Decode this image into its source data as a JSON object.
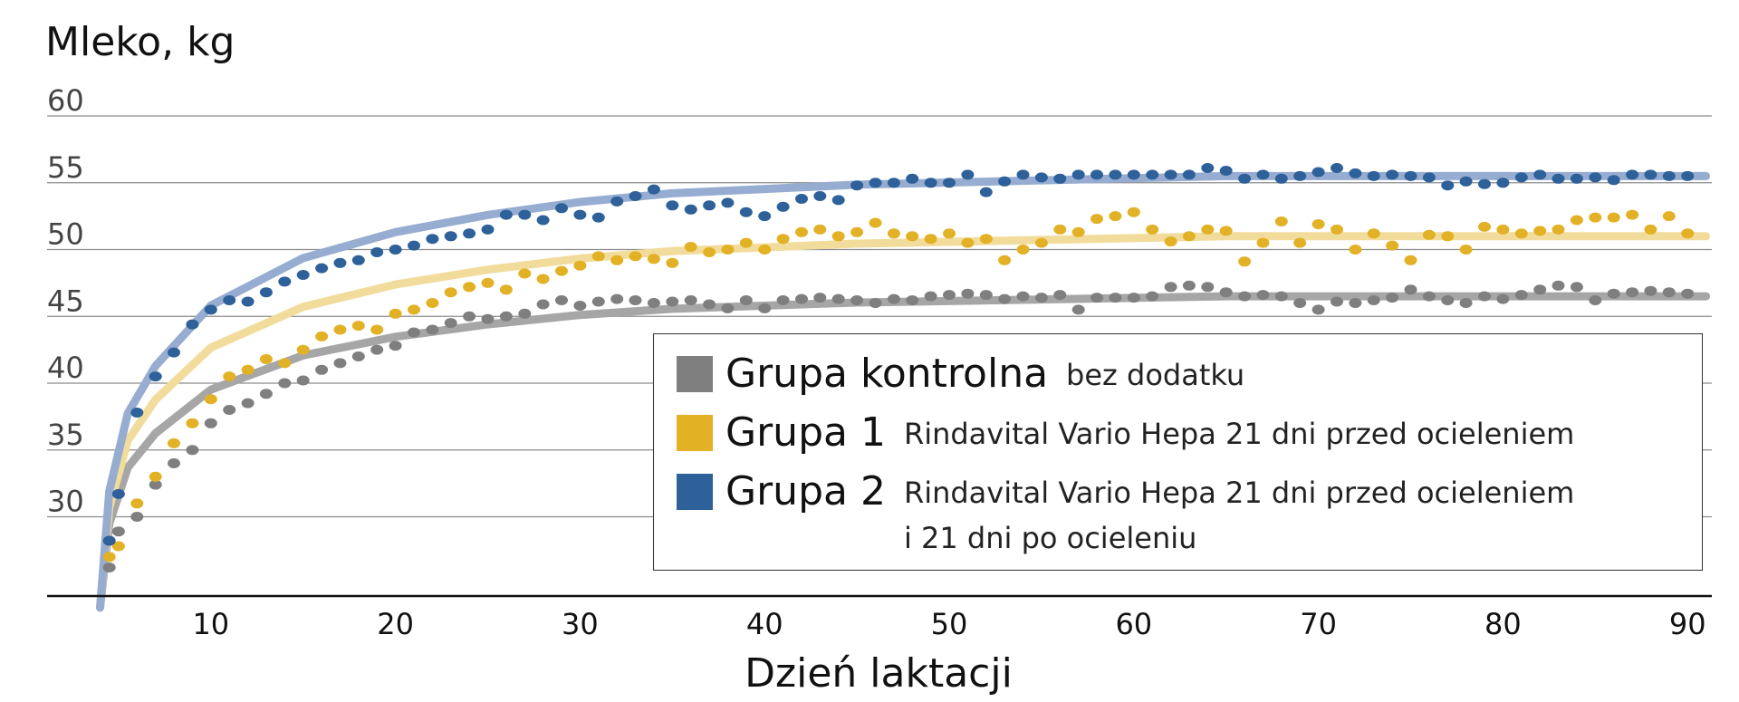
{
  "chart_data": {
    "type": "scatter",
    "ylabel": "Mleko, kg",
    "xlabel": "Dzień laktacji",
    "xlim": [
      0,
      91
    ],
    "ylim": [
      23,
      60
    ],
    "x_ticks": [
      10,
      20,
      30,
      40,
      50,
      60,
      70,
      80,
      90
    ],
    "y_ticks": [
      30,
      35,
      40,
      45,
      50,
      55,
      60
    ],
    "grid": "horizontal",
    "legend_position": "bottom-right",
    "series": [
      {
        "name": "Grupa kontrolna",
        "description": "bez dodatku",
        "color": "#7f7f7f",
        "trend_color": "#a6a6a6",
        "plateau": 46.5,
        "points": [
          [
            4.5,
            26.2
          ],
          [
            5,
            28.9
          ],
          [
            6,
            30.0
          ],
          [
            7,
            32.4
          ],
          [
            8,
            34.0
          ],
          [
            9,
            35.0
          ],
          [
            10,
            37.0
          ],
          [
            11,
            38.0
          ],
          [
            12,
            38.5
          ],
          [
            13,
            39.2
          ],
          [
            14,
            40.0
          ],
          [
            15,
            40.2
          ],
          [
            16,
            41.0
          ],
          [
            17,
            41.5
          ],
          [
            18,
            42.0
          ],
          [
            19,
            42.5
          ],
          [
            20,
            42.8
          ],
          [
            21,
            43.8
          ],
          [
            22,
            44.0
          ],
          [
            23,
            44.5
          ],
          [
            24,
            45.0
          ],
          [
            25,
            44.8
          ],
          [
            26,
            45.0
          ],
          [
            27,
            45.2
          ],
          [
            28,
            45.9
          ],
          [
            29,
            46.2
          ],
          [
            30,
            45.8
          ],
          [
            31,
            46.1
          ],
          [
            32,
            46.3
          ],
          [
            33,
            46.2
          ],
          [
            34,
            46.0
          ],
          [
            35,
            46.1
          ],
          [
            36,
            46.2
          ],
          [
            37,
            45.9
          ],
          [
            38,
            45.6
          ],
          [
            39,
            46.2
          ],
          [
            40,
            45.6
          ],
          [
            41,
            46.2
          ],
          [
            42,
            46.3
          ],
          [
            43,
            46.4
          ],
          [
            44,
            46.3
          ],
          [
            45,
            46.2
          ],
          [
            46,
            46.0
          ],
          [
            47,
            46.3
          ],
          [
            48,
            46.2
          ],
          [
            49,
            46.5
          ],
          [
            50,
            46.6
          ],
          [
            51,
            46.7
          ],
          [
            52,
            46.6
          ],
          [
            53,
            46.3
          ],
          [
            54,
            46.5
          ],
          [
            55,
            46.4
          ],
          [
            56,
            46.6
          ],
          [
            57,
            45.5
          ],
          [
            58,
            46.4
          ],
          [
            59,
            46.4
          ],
          [
            60,
            46.4
          ],
          [
            61,
            46.5
          ],
          [
            62,
            47.2
          ],
          [
            63,
            47.3
          ],
          [
            64,
            47.2
          ],
          [
            65,
            46.8
          ],
          [
            66,
            46.5
          ],
          [
            67,
            46.6
          ],
          [
            68,
            46.5
          ],
          [
            69,
            46.0
          ],
          [
            70,
            45.5
          ],
          [
            71,
            46.1
          ],
          [
            72,
            46.0
          ],
          [
            73,
            46.2
          ],
          [
            74,
            46.4
          ],
          [
            75,
            47.0
          ],
          [
            76,
            46.5
          ],
          [
            77,
            46.2
          ],
          [
            78,
            46.0
          ],
          [
            79,
            46.5
          ],
          [
            80,
            46.3
          ],
          [
            81,
            46.6
          ],
          [
            82,
            47.0
          ],
          [
            83,
            47.3
          ],
          [
            84,
            47.2
          ],
          [
            85,
            46.2
          ],
          [
            86,
            46.7
          ],
          [
            87,
            46.8
          ],
          [
            88,
            46.9
          ],
          [
            89,
            46.8
          ],
          [
            90,
            46.7
          ]
        ]
      },
      {
        "name": "Grupa 1",
        "description": "Rindavital Vario Hepa 21 dni przed ocieleniem",
        "color": "#e2b125",
        "trend_color": "#f2dc9c",
        "plateau": 51.0,
        "points": [
          [
            4.5,
            27.0
          ],
          [
            5,
            27.8
          ],
          [
            6,
            31.0
          ],
          [
            7,
            33.0
          ],
          [
            8,
            35.5
          ],
          [
            9,
            37.0
          ],
          [
            10,
            38.8
          ],
          [
            11,
            40.5
          ],
          [
            12,
            41.0
          ],
          [
            13,
            41.8
          ],
          [
            14,
            41.5
          ],
          [
            15,
            42.5
          ],
          [
            16,
            43.5
          ],
          [
            17,
            44.0
          ],
          [
            18,
            44.3
          ],
          [
            19,
            44.0
          ],
          [
            20,
            45.2
          ],
          [
            21,
            45.5
          ],
          [
            22,
            46.0
          ],
          [
            23,
            46.8
          ],
          [
            24,
            47.2
          ],
          [
            25,
            47.5
          ],
          [
            26,
            47.0
          ],
          [
            27,
            48.2
          ],
          [
            28,
            47.8
          ],
          [
            29,
            48.4
          ],
          [
            30,
            48.8
          ],
          [
            31,
            49.5
          ],
          [
            32,
            49.2
          ],
          [
            33,
            49.5
          ],
          [
            34,
            49.3
          ],
          [
            35,
            49.0
          ],
          [
            36,
            50.2
          ],
          [
            37,
            49.8
          ],
          [
            38,
            50.0
          ],
          [
            39,
            50.5
          ],
          [
            40,
            50.0
          ],
          [
            41,
            50.8
          ],
          [
            42,
            51.3
          ],
          [
            43,
            51.5
          ],
          [
            44,
            51.0
          ],
          [
            45,
            51.3
          ],
          [
            46,
            52.0
          ],
          [
            47,
            51.2
          ],
          [
            48,
            51.0
          ],
          [
            49,
            50.8
          ],
          [
            50,
            51.2
          ],
          [
            51,
            50.5
          ],
          [
            52,
            50.8
          ],
          [
            53,
            49.2
          ],
          [
            54,
            50.0
          ],
          [
            55,
            50.5
          ],
          [
            56,
            51.5
          ],
          [
            57,
            51.3
          ],
          [
            58,
            52.3
          ],
          [
            59,
            52.5
          ],
          [
            60,
            52.8
          ],
          [
            61,
            51.5
          ],
          [
            62,
            50.6
          ],
          [
            63,
            51.0
          ],
          [
            64,
            51.5
          ],
          [
            65,
            51.4
          ],
          [
            66,
            49.1
          ],
          [
            67,
            50.5
          ],
          [
            68,
            52.1
          ],
          [
            69,
            50.5
          ],
          [
            70,
            51.9
          ],
          [
            71,
            51.5
          ],
          [
            72,
            50.0
          ],
          [
            73,
            51.2
          ],
          [
            74,
            50.3
          ],
          [
            75,
            49.2
          ],
          [
            76,
            51.1
          ],
          [
            77,
            51.0
          ],
          [
            78,
            50.0
          ],
          [
            79,
            51.7
          ],
          [
            80,
            51.5
          ],
          [
            81,
            51.2
          ],
          [
            82,
            51.4
          ],
          [
            83,
            51.5
          ],
          [
            84,
            52.2
          ],
          [
            85,
            52.4
          ],
          [
            86,
            52.4
          ],
          [
            87,
            52.6
          ],
          [
            88,
            51.5
          ],
          [
            89,
            52.5
          ],
          [
            90,
            51.2
          ]
        ]
      },
      {
        "name": "Grupa 2",
        "description": "Rindavital Vario Hepa 21 dni przed ocieleniem\ni 21 dni po ocieleniu",
        "color": "#2e6199",
        "trend_color": "#96acd0",
        "plateau": 55.5,
        "points": [
          [
            4.5,
            28.2
          ],
          [
            5,
            31.7
          ],
          [
            6,
            37.8
          ],
          [
            7,
            40.5
          ],
          [
            8,
            42.3
          ],
          [
            9,
            44.4
          ],
          [
            10,
            45.5
          ],
          [
            11,
            46.2
          ],
          [
            12,
            46.1
          ],
          [
            13,
            46.8
          ],
          [
            14,
            47.6
          ],
          [
            15,
            48.1
          ],
          [
            16,
            48.6
          ],
          [
            17,
            49.0
          ],
          [
            18,
            49.2
          ],
          [
            19,
            49.8
          ],
          [
            20,
            50.0
          ],
          [
            21,
            50.3
          ],
          [
            22,
            50.8
          ],
          [
            23,
            51.0
          ],
          [
            24,
            51.2
          ],
          [
            25,
            51.5
          ],
          [
            26,
            52.6
          ],
          [
            27,
            52.6
          ],
          [
            28,
            52.2
          ],
          [
            29,
            53.1
          ],
          [
            30,
            52.6
          ],
          [
            31,
            52.4
          ],
          [
            32,
            53.6
          ],
          [
            33,
            54.0
          ],
          [
            34,
            54.5
          ],
          [
            35,
            53.3
          ],
          [
            36,
            53.0
          ],
          [
            37,
            53.3
          ],
          [
            38,
            53.5
          ],
          [
            39,
            52.8
          ],
          [
            40,
            52.5
          ],
          [
            41,
            53.2
          ],
          [
            42,
            53.8
          ],
          [
            43,
            54.0
          ],
          [
            44,
            53.7
          ],
          [
            45,
            54.8
          ],
          [
            46,
            55.0
          ],
          [
            47,
            55.0
          ],
          [
            48,
            55.3
          ],
          [
            49,
            55.0
          ],
          [
            50,
            55.0
          ],
          [
            51,
            55.6
          ],
          [
            52,
            54.3
          ],
          [
            53,
            55.1
          ],
          [
            54,
            55.6
          ],
          [
            55,
            55.4
          ],
          [
            56,
            55.3
          ],
          [
            57,
            55.6
          ],
          [
            58,
            55.6
          ],
          [
            59,
            55.6
          ],
          [
            60,
            55.6
          ],
          [
            61,
            55.6
          ],
          [
            62,
            55.6
          ],
          [
            63,
            55.6
          ],
          [
            64,
            56.1
          ],
          [
            65,
            55.9
          ],
          [
            66,
            55.3
          ],
          [
            67,
            55.6
          ],
          [
            68,
            55.3
          ],
          [
            69,
            55.5
          ],
          [
            70,
            55.8
          ],
          [
            71,
            56.1
          ],
          [
            72,
            55.7
          ],
          [
            73,
            55.5
          ],
          [
            74,
            55.6
          ],
          [
            75,
            55.5
          ],
          [
            76,
            55.4
          ],
          [
            77,
            54.8
          ],
          [
            78,
            55.1
          ],
          [
            79,
            54.9
          ],
          [
            80,
            55.0
          ],
          [
            81,
            55.4
          ],
          [
            82,
            55.6
          ],
          [
            83,
            55.3
          ],
          [
            84,
            55.3
          ],
          [
            85,
            55.4
          ],
          [
            86,
            55.2
          ],
          [
            87,
            55.6
          ],
          [
            88,
            55.6
          ],
          [
            89,
            55.5
          ],
          [
            90,
            55.5
          ]
        ]
      }
    ]
  }
}
